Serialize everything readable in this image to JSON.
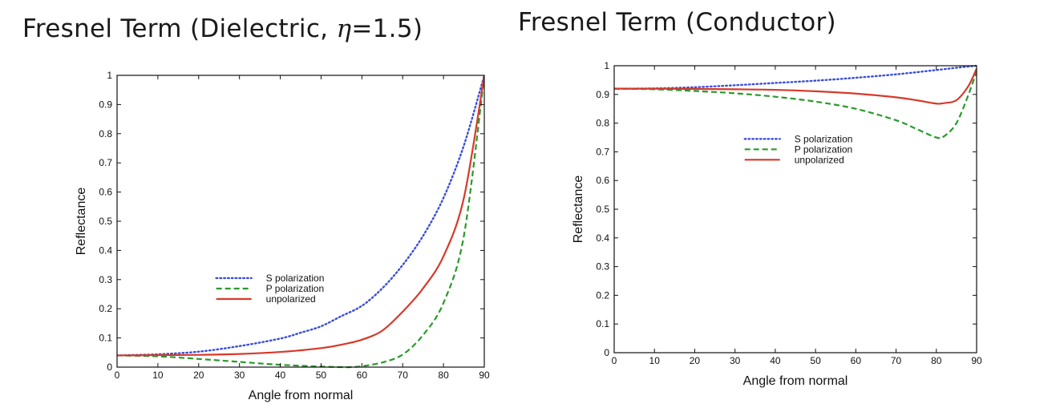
{
  "titles": {
    "left_prefix": "Fresnel Term (Dielectric, ",
    "left_symbol": "η",
    "left_suffix": "=1.5)",
    "right": "Fresnel Term (Conductor)"
  },
  "chart_data": [
    {
      "type": "line",
      "xlabel": "Angle from normal",
      "ylabel": "Reflectance",
      "xlim": [
        0,
        90
      ],
      "ylim": [
        0,
        1
      ],
      "xticks": [
        0,
        10,
        20,
        30,
        40,
        50,
        60,
        70,
        80,
        90
      ],
      "yticks": [
        0,
        0.1,
        0.2,
        0.3,
        0.4,
        0.5,
        0.6,
        0.7,
        0.8,
        0.9,
        1
      ],
      "grid": false,
      "legend_position": "center",
      "series": [
        {
          "name": "S polarization",
          "color": "#3b4fd8",
          "style": "dotted",
          "x": [
            0,
            10,
            20,
            30,
            40,
            45,
            50,
            55,
            60,
            65,
            70,
            75,
            80,
            85,
            90
          ],
          "y": [
            0.04,
            0.044,
            0.053,
            0.072,
            0.098,
            0.118,
            0.14,
            0.175,
            0.21,
            0.27,
            0.35,
            0.45,
            0.58,
            0.76,
            1.0
          ]
        },
        {
          "name": "P polarization",
          "color": "#2a9a2a",
          "style": "dashed",
          "x": [
            0,
            10,
            20,
            30,
            40,
            50,
            55,
            57,
            60,
            65,
            70,
            75,
            80,
            85,
            90
          ],
          "y": [
            0.04,
            0.037,
            0.028,
            0.018,
            0.008,
            0.002,
            0.0,
            0.0,
            0.003,
            0.016,
            0.043,
            0.11,
            0.22,
            0.45,
            1.0
          ]
        },
        {
          "name": "unpolarized",
          "color": "#d63a2a",
          "style": "solid",
          "x": [
            0,
            10,
            20,
            30,
            40,
            50,
            55,
            60,
            65,
            70,
            75,
            80,
            85,
            90
          ],
          "y": [
            0.04,
            0.041,
            0.042,
            0.045,
            0.052,
            0.065,
            0.077,
            0.094,
            0.125,
            0.19,
            0.27,
            0.38,
            0.58,
            1.0
          ]
        }
      ]
    },
    {
      "type": "line",
      "xlabel": "Angle from normal",
      "ylabel": "Reflectance",
      "xlim": [
        0,
        90
      ],
      "ylim": [
        0,
        1
      ],
      "xticks": [
        0,
        10,
        20,
        30,
        40,
        50,
        60,
        70,
        80,
        90
      ],
      "yticks": [
        0,
        0.1,
        0.2,
        0.3,
        0.4,
        0.5,
        0.6,
        0.7,
        0.8,
        0.9,
        1
      ],
      "grid": false,
      "legend_position": "upper center",
      "series": [
        {
          "name": "S polarization",
          "color": "#3b4fd8",
          "style": "dotted",
          "x": [
            0,
            10,
            20,
            30,
            40,
            50,
            60,
            70,
            80,
            85,
            90
          ],
          "y": [
            0.92,
            0.921,
            0.925,
            0.932,
            0.94,
            0.948,
            0.958,
            0.97,
            0.985,
            0.993,
            1.0
          ]
        },
        {
          "name": "P polarization",
          "color": "#2a9a2a",
          "style": "dashed",
          "x": [
            0,
            10,
            20,
            30,
            40,
            50,
            60,
            70,
            75,
            80,
            82,
            85,
            88,
            90
          ],
          "y": [
            0.92,
            0.918,
            0.912,
            0.904,
            0.892,
            0.875,
            0.85,
            0.81,
            0.78,
            0.75,
            0.755,
            0.8,
            0.9,
            0.98
          ]
        },
        {
          "name": "unpolarized",
          "color": "#d63a2a",
          "style": "solid",
          "x": [
            0,
            10,
            20,
            30,
            40,
            50,
            60,
            70,
            75,
            80,
            82,
            85,
            88,
            90
          ],
          "y": [
            0.92,
            0.92,
            0.919,
            0.918,
            0.916,
            0.911,
            0.903,
            0.89,
            0.88,
            0.868,
            0.87,
            0.88,
            0.93,
            0.99
          ]
        }
      ]
    }
  ]
}
